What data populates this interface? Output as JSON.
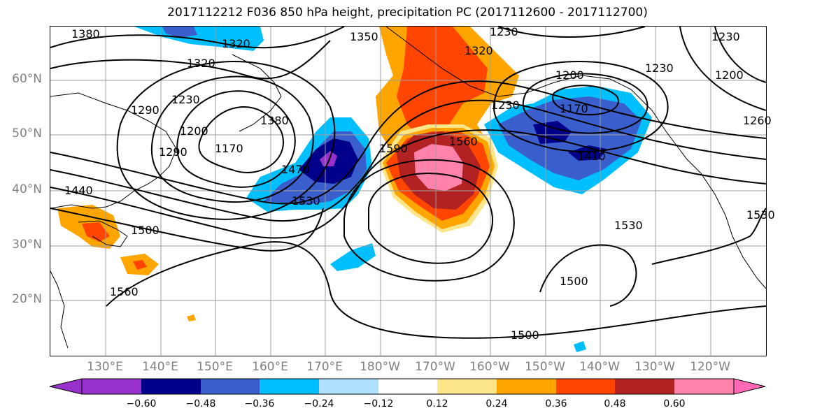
{
  "title": "2017112212 F036 850 hPa height, precipitation PC (2017112600 - 2017112700)",
  "lat_labels": [
    "60°N",
    "50°N",
    "40°N",
    "30°N",
    "20°N"
  ],
  "lon_labels": [
    "130°E",
    "140°E",
    "150°E",
    "160°E",
    "170°E",
    "180°W",
    "170°W",
    "160°W",
    "150°W",
    "140°W",
    "130°W",
    "120°W"
  ],
  "contour_labels": [
    "1380",
    "1320",
    "1350",
    "1320",
    "1230",
    "1230",
    "1320",
    "1290",
    "1230",
    "1380",
    "1200",
    "1170",
    "1290",
    "1470",
    "1590",
    "1560",
    "1530",
    "1440",
    "1500",
    "1560",
    "1230",
    "1200",
    "1170",
    "1410",
    "1230",
    "1200",
    "1260",
    "1530",
    "1530",
    "1500",
    "1500"
  ],
  "colorbar": {
    "ticks": [
      "−0.60",
      "−0.48",
      "−0.36",
      "−0.24",
      "−0.12",
      "0.12",
      "0.24",
      "0.36",
      "0.48",
      "0.60"
    ],
    "colors": [
      "#9932cc",
      "#00008b",
      "#3a5fcd",
      "#00bfff",
      "#b0e2ff",
      "#ffffff",
      "#fde68a",
      "#ffa500",
      "#ff4500",
      "#b22222",
      "#ff82ab",
      "#ff69b4"
    ]
  },
  "fill_colors": {
    "purple": "#9932cc",
    "navy": "#00008b",
    "blue": "#3a5fcd",
    "deepsky": "#00bfff",
    "lightblue": "#b0e2ff",
    "yellow": "#fde68a",
    "orange": "#ffa500",
    "red": "#ff4500",
    "firebrick": "#b22222",
    "pink": "#ff82ab"
  }
}
